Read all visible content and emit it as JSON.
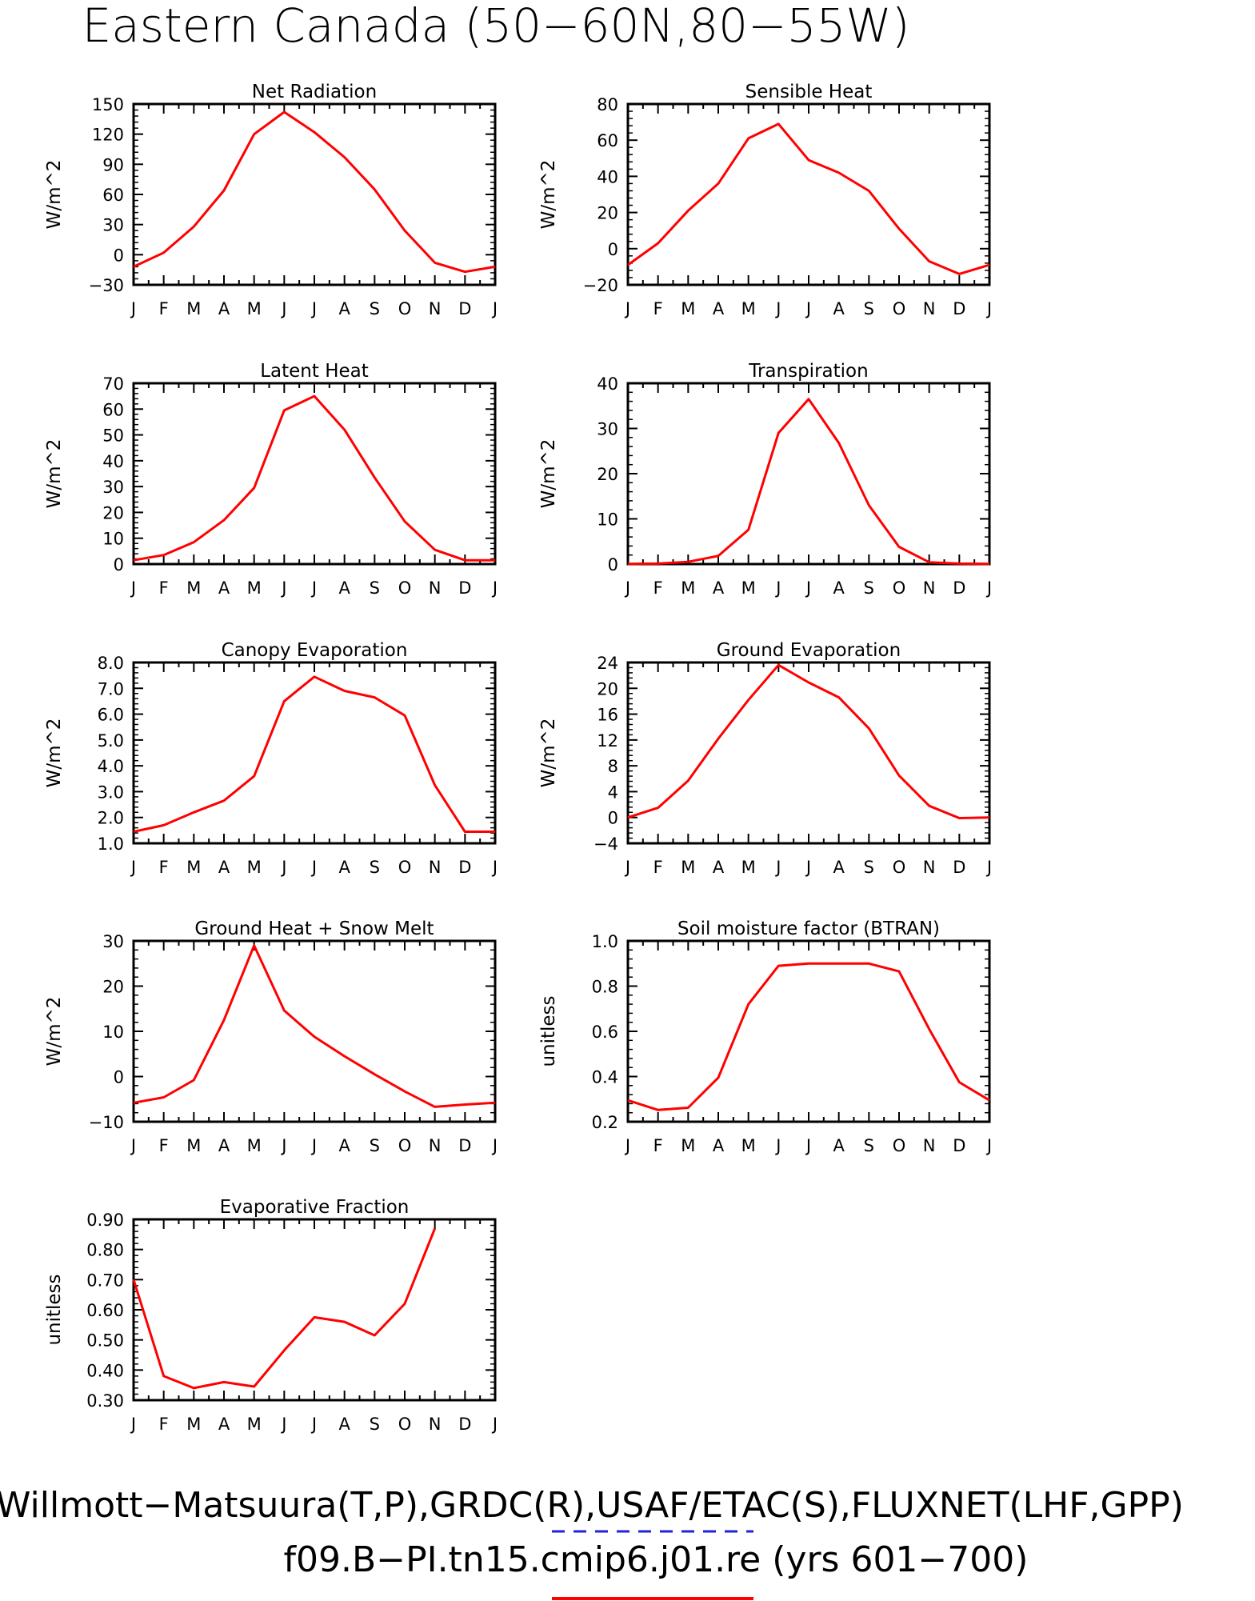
{
  "title": "Eastern Canada (50−60N,80−55W)",
  "footer": {
    "line1": "Willmott−Matsuura(T,P),GRDC(R),USAF/ETAC(S),FLUXNET(LHF,GPP)",
    "line2": "f09.B−PI.tn15.cmip6.j01.re (yrs 601−700)"
  },
  "colors": {
    "series": "#ff0000",
    "obs_legend": "#2222dd",
    "axis": "#000000"
  },
  "chart_data": [
    {
      "type": "line",
      "title": "Net Radiation",
      "ylabel": "W/m^2",
      "categories": [
        "J",
        "F",
        "M",
        "A",
        "M",
        "J",
        "J",
        "A",
        "S",
        "O",
        "N",
        "D",
        "J"
      ],
      "ylim": [
        -30,
        150
      ],
      "yticks": [
        -30,
        0,
        30,
        60,
        90,
        120,
        150
      ],
      "ytick_labels": [
        "−30",
        "0",
        "30",
        "60",
        "90",
        "120",
        "150"
      ],
      "values": [
        -12,
        2,
        28,
        64,
        120,
        142,
        122,
        97,
        65,
        24,
        -8,
        -17,
        -12
      ]
    },
    {
      "type": "line",
      "title": "Sensible Heat",
      "ylabel": "W/m^2",
      "categories": [
        "J",
        "F",
        "M",
        "A",
        "M",
        "J",
        "J",
        "A",
        "S",
        "O",
        "N",
        "D",
        "J"
      ],
      "ylim": [
        -20,
        80
      ],
      "yticks": [
        -20,
        0,
        20,
        40,
        60,
        80
      ],
      "ytick_labels": [
        "−20",
        "0",
        "20",
        "40",
        "60",
        "80"
      ],
      "values": [
        -9,
        3,
        21,
        36,
        61,
        69,
        49,
        42,
        32,
        11,
        -7,
        -14,
        -9
      ]
    },
    {
      "type": "line",
      "title": "Latent Heat",
      "ylabel": "W/m^2",
      "categories": [
        "J",
        "F",
        "M",
        "A",
        "M",
        "J",
        "J",
        "A",
        "S",
        "O",
        "N",
        "D",
        "J"
      ],
      "ylim": [
        0,
        70
      ],
      "yticks": [
        0,
        10,
        20,
        30,
        40,
        50,
        60,
        70
      ],
      "ytick_labels": [
        "0",
        "10",
        "20",
        "30",
        "40",
        "50",
        "60",
        "70"
      ],
      "values": [
        1.5,
        3.5,
        8.5,
        17,
        29.5,
        59.5,
        65,
        52,
        33.5,
        16.5,
        5.5,
        1.5,
        1.5
      ]
    },
    {
      "type": "line",
      "title": "Transpiration",
      "ylabel": "W/m^2",
      "categories": [
        "J",
        "F",
        "M",
        "A",
        "M",
        "J",
        "J",
        "A",
        "S",
        "O",
        "N",
        "D",
        "J"
      ],
      "ylim": [
        0,
        40
      ],
      "yticks": [
        0,
        10,
        20,
        30,
        40
      ],
      "ytick_labels": [
        "0",
        "10",
        "20",
        "30",
        "40"
      ],
      "values": [
        0.05,
        0.1,
        0.5,
        1.8,
        7.6,
        29,
        36.5,
        26.8,
        13,
        3.8,
        0.4,
        0.1,
        0.05
      ]
    },
    {
      "type": "line",
      "title": "Canopy Evaporation",
      "ylabel": "W/m^2",
      "categories": [
        "J",
        "F",
        "M",
        "A",
        "M",
        "J",
        "J",
        "A",
        "S",
        "O",
        "N",
        "D",
        "J"
      ],
      "ylim": [
        1.0,
        8.0
      ],
      "yticks": [
        1,
        2,
        3,
        4,
        5,
        6,
        7,
        8
      ],
      "ytick_labels": [
        "1.0",
        "2.0",
        "3.0",
        "4.0",
        "5.0",
        "6.0",
        "7.0",
        "8.0"
      ],
      "values": [
        1.45,
        1.7,
        2.2,
        2.65,
        3.6,
        6.5,
        7.45,
        6.9,
        6.65,
        5.95,
        3.25,
        1.45,
        1.45
      ]
    },
    {
      "type": "line",
      "title": "Ground Evaporation",
      "ylabel": "W/m^2",
      "categories": [
        "J",
        "F",
        "M",
        "A",
        "M",
        "J",
        "J",
        "A",
        "S",
        "O",
        "N",
        "D",
        "J"
      ],
      "ylim": [
        -4,
        24
      ],
      "yticks": [
        -4,
        0,
        4,
        8,
        12,
        16,
        20,
        24
      ],
      "ytick_labels": [
        "−4",
        "0",
        "4",
        "8",
        "12",
        "16",
        "20",
        "24"
      ],
      "values": [
        0,
        1.5,
        5.7,
        12.2,
        18.2,
        23.6,
        20.9,
        18.6,
        13.8,
        6.5,
        1.8,
        -0.1,
        0
      ]
    },
    {
      "type": "line",
      "title": "Ground Heat + Snow Melt",
      "ylabel": "W/m^2",
      "categories": [
        "J",
        "F",
        "M",
        "A",
        "M",
        "J",
        "J",
        "A",
        "S",
        "O",
        "N",
        "D",
        "J"
      ],
      "ylim": [
        -10,
        30
      ],
      "yticks": [
        -10,
        0,
        10,
        20,
        30
      ],
      "ytick_labels": [
        "−10",
        "0",
        "10",
        "20",
        "30"
      ],
      "values": [
        -5.8,
        -4.6,
        -0.8,
        12.5,
        29,
        14.6,
        8.8,
        4.5,
        0.5,
        -3.3,
        -6.7,
        -6.2,
        -5.8
      ]
    },
    {
      "type": "line",
      "title": "Soil moisture factor (BTRAN)",
      "ylabel": "unitless",
      "categories": [
        "J",
        "F",
        "M",
        "A",
        "M",
        "J",
        "J",
        "A",
        "S",
        "O",
        "N",
        "D",
        "J"
      ],
      "ylim": [
        0.2,
        1.0
      ],
      "yticks": [
        0.2,
        0.4,
        0.6,
        0.8,
        1.0
      ],
      "ytick_labels": [
        "0.2",
        "0.4",
        "0.6",
        "0.8",
        "1.0"
      ],
      "values": [
        0.295,
        0.252,
        0.262,
        0.395,
        0.72,
        0.89,
        0.9,
        0.9,
        0.9,
        0.865,
        0.61,
        0.375,
        0.295
      ]
    },
    {
      "type": "line",
      "title": "Evaporative Fraction",
      "ylabel": "unitless",
      "categories": [
        "J",
        "F",
        "M",
        "A",
        "M",
        "J",
        "J",
        "A",
        "S",
        "O",
        "N",
        "D",
        "J"
      ],
      "ylim": [
        0.3,
        0.9
      ],
      "yticks": [
        0.3,
        0.4,
        0.5,
        0.6,
        0.7,
        0.8,
        0.9
      ],
      "ytick_labels": [
        "0.30",
        "0.40",
        "0.50",
        "0.60",
        "0.70",
        "0.80",
        "0.90"
      ],
      "values": [
        0.7,
        0.38,
        0.34,
        0.36,
        0.345,
        0.465,
        0.575,
        0.56,
        0.515,
        0.62,
        0.87,
        null,
        null
      ]
    }
  ]
}
